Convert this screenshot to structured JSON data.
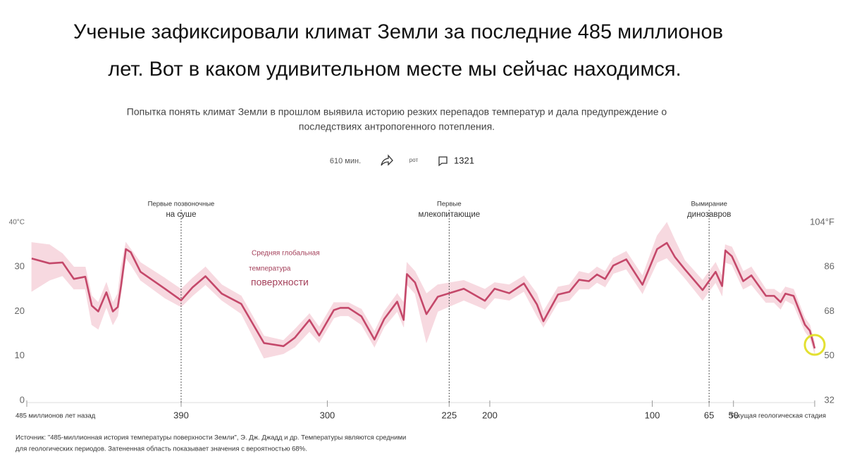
{
  "header": {
    "title": [
      "Ученые зафиксировали климат Земли за последние 485 миллионов",
      "лет. Вот в каком удивительном месте мы сейчас находимся."
    ],
    "subtitle": [
      "Попытка понять климат Земли в прошлом выявила историю резких перепадов температур и дала предупреждение о",
      "последствиях антропогенного потепления."
    ],
    "meta": {
      "read_time": "610 мин.",
      "label": "рот",
      "comments": "1321"
    }
  },
  "chart_data": {
    "type": "line",
    "x": [
      482,
      471,
      463,
      456,
      449,
      445,
      441,
      436,
      432,
      429,
      427,
      424,
      421,
      415,
      400,
      390,
      383,
      375,
      365,
      353,
      339,
      327,
      320,
      311,
      305,
      296,
      292,
      287,
      279,
      271,
      265,
      257,
      253,
      251,
      246,
      239,
      232,
      216,
      203,
      197,
      188,
      179,
      171,
      167,
      158,
      151,
      145,
      139,
      134,
      129,
      124,
      116,
      106,
      97,
      91,
      86,
      80,
      69,
      61,
      57,
      55,
      51,
      44,
      39,
      30,
      25,
      21,
      18,
      13,
      6,
      3,
      0
    ],
    "series": [
      {
        "color": "#c4486a",
        "values": [
          31.9,
          30.8,
          31,
          27.3,
          27.8,
          21.3,
          20,
          24.3,
          20,
          21,
          25.7,
          34,
          33.3,
          28.9,
          25.1,
          22.5,
          25.4,
          27.9,
          24,
          21.7,
          12.9,
          12.2,
          14.1,
          18.1,
          14.6,
          20.3,
          20.8,
          20.8,
          18.9,
          13.7,
          18.3,
          22.2,
          18.1,
          28.4,
          26.5,
          19.4,
          23.3,
          25.1,
          22.4,
          25.1,
          24.1,
          26.3,
          21.6,
          17.8,
          23.8,
          24.4,
          27.1,
          26.8,
          28.3,
          27.3,
          30.3,
          31.7,
          26,
          34,
          35.4,
          32.2,
          29.5,
          24.8,
          28.9,
          25.7,
          33.7,
          32.4,
          26.8,
          28.1,
          23.5,
          23.5,
          22.1,
          24,
          23.5,
          17,
          15.7,
          11.7
        ]
      }
    ],
    "band": {
      "color": "#f7d9e0",
      "high": [
        35.5,
        35,
        33,
        30,
        30,
        23.5,
        22,
        26.5,
        22,
        24,
        30,
        35.5,
        34,
        31,
        27.5,
        25,
        27.5,
        30,
        26,
        23.5,
        14.5,
        13.5,
        16,
        19.5,
        16.5,
        22,
        22,
        22,
        20.5,
        15.5,
        20,
        24,
        22,
        31,
        29,
        24,
        26,
        27,
        25,
        26.5,
        26,
        28,
        24,
        20,
        25.5,
        26,
        29,
        28.5,
        30,
        29,
        32,
        33.5,
        28,
        37,
        40,
        36,
        31.5,
        27,
        31,
        28,
        35,
        34.5,
        29,
        30,
        25,
        25,
        24,
        25.5,
        25,
        18.5,
        17,
        13
      ],
      "low": [
        24.5,
        27,
        28,
        25,
        25,
        17,
        16,
        21,
        17,
        19,
        24,
        32,
        30.5,
        27,
        23,
        21,
        23.5,
        26,
        22.5,
        19.5,
        9.5,
        10.5,
        12,
        15.5,
        13,
        18.5,
        19,
        19,
        17,
        12,
        16.5,
        20,
        16.5,
        26,
        24,
        13,
        20,
        22.5,
        20.5,
        23,
        22.5,
        24.5,
        19,
        16.5,
        22,
        22.5,
        25,
        25,
        26.5,
        25.5,
        28.5,
        29.5,
        24,
        31,
        32,
        30,
        27.5,
        22.5,
        26.5,
        23.5,
        31,
        30.5,
        25,
        26,
        22,
        22,
        20.5,
        22.5,
        21.5,
        15.5,
        14,
        10.5
      ]
    },
    "series_label": [
      "Средняя глобальная",
      "температура",
      "поверхности"
    ],
    "annotations": [
      {
        "x": 390,
        "label": [
          "Первые позвоночные",
          "на суше"
        ]
      },
      {
        "x": 225,
        "label": [
          "Первые",
          "млекопитающие"
        ]
      },
      {
        "x": 65,
        "label": [
          "Вымирание",
          "динозавров"
        ]
      }
    ],
    "xlim": [
      485,
      0
    ],
    "xticks": [
      {
        "value": 485,
        "label": "485 миллионов лет назад"
      },
      390,
      300,
      225,
      200,
      100,
      65,
      50,
      {
        "value": 0,
        "label": "Текущая геологическая стадия"
      }
    ],
    "ylim": [
      0,
      40
    ],
    "yticks": [
      0,
      10,
      20,
      30,
      {
        "value": 40,
        "label": "40°C"
      }
    ],
    "y2lim": [
      32,
      104
    ],
    "y2ticks": [
      32,
      50,
      68,
      86,
      {
        "value": 104,
        "label": "104°F"
      }
    ],
    "highlight_color": "#e3e032",
    "source": [
      "Источник: \"485-миллионная история температуры поверхности Земли\", Э. Дж. Джадд и др. Температуры являются средними",
      "для геологических периодов. Затененная область показывает значения с вероятностью 68%."
    ]
  }
}
